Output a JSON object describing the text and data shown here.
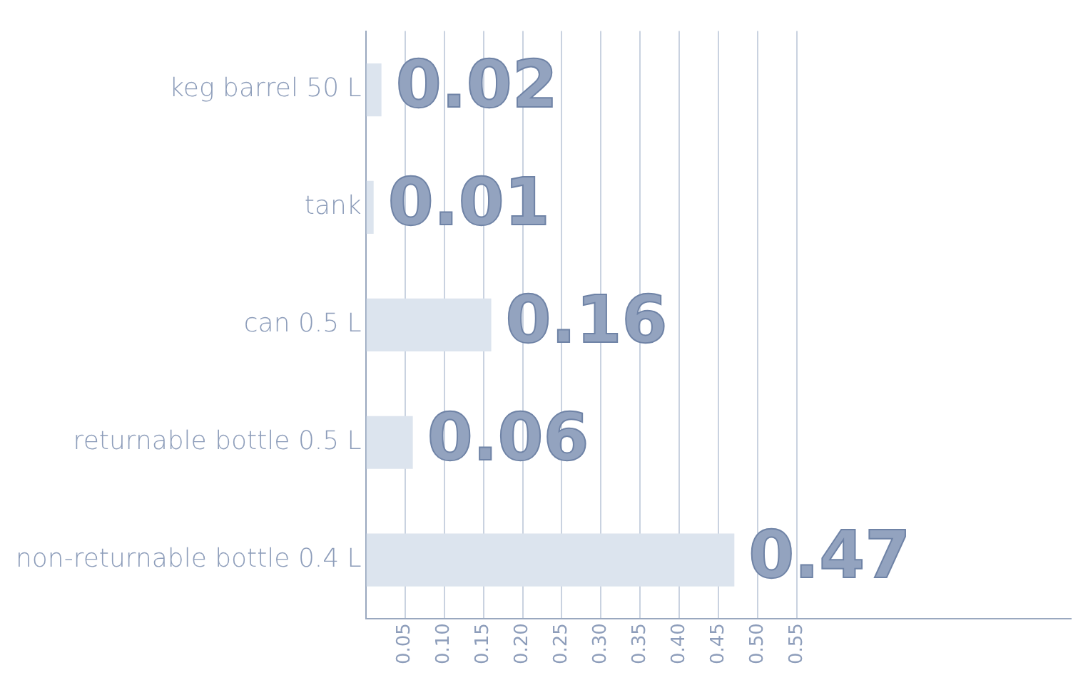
{
  "chart_data": {
    "type": "bar",
    "orientation": "horizontal",
    "categories": [
      "keg barrel 50 L",
      "tank",
      "can 0.5 L",
      "returnable bottle 0.5 L",
      "non-returnable bottle 0.4 L"
    ],
    "values": [
      0.02,
      0.01,
      0.16,
      0.06,
      0.47
    ],
    "color": "#dce4ee",
    "xlim": [
      0,
      0.9
    ],
    "xticks": [
      {
        "value": 0,
        "label": null
      },
      "0.05",
      "0.10",
      "0.15",
      "0.20",
      "0.25",
      "0.30",
      "0.35",
      "0.40",
      "0.45",
      "0.50",
      "0.55"
    ],
    "grid": "x",
    "legend": false,
    "data_labels": true
  }
}
